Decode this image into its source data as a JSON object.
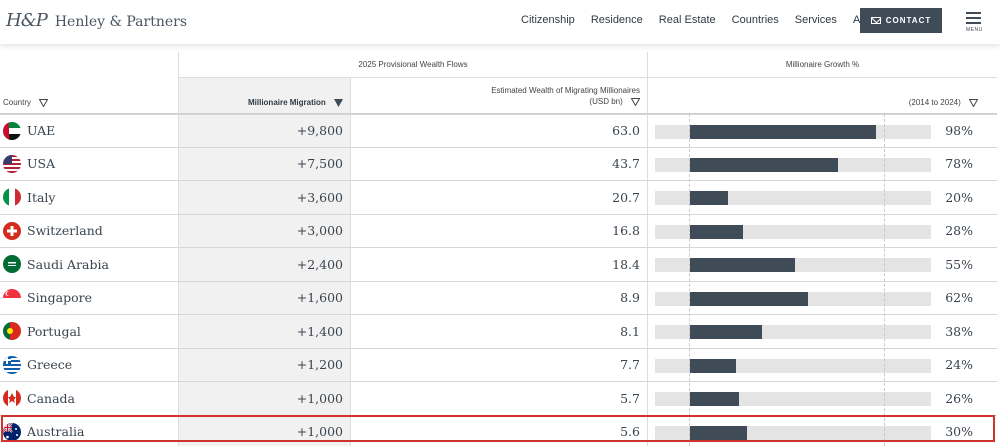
{
  "header": {
    "logo_mark": "H&P",
    "logo_text": "Henley & Partners",
    "nav": [
      "Citizenship",
      "Residence",
      "Real Estate",
      "Countries",
      "Services",
      "About"
    ],
    "contact_label": "CONTACT",
    "menu_label": "MENU"
  },
  "table": {
    "group_headers": {
      "flows": "2025 Provisional Wealth Flows",
      "growth": "Millionaire Growth %"
    },
    "columns": {
      "country": "Country",
      "migration": "Millionaire Migration",
      "wealth_line1": "Estimated Wealth of Migrating Millionaires",
      "wealth_line2": "(USD bn)",
      "growth_period": "(2014 to 2024)"
    },
    "rows": [
      {
        "country": "UAE",
        "migration": "+9,800",
        "wealth": "63.0",
        "growth": 98,
        "growth_label": "98%",
        "flag": "uae"
      },
      {
        "country": "USA",
        "migration": "+7,500",
        "wealth": "43.7",
        "growth": 78,
        "growth_label": "78%",
        "flag": "usa"
      },
      {
        "country": "Italy",
        "migration": "+3,600",
        "wealth": "20.7",
        "growth": 20,
        "growth_label": "20%",
        "flag": "italy"
      },
      {
        "country": "Switzerland",
        "migration": "+3,000",
        "wealth": "16.8",
        "growth": 28,
        "growth_label": "28%",
        "flag": "switzerland"
      },
      {
        "country": "Saudi Arabia",
        "migration": "+2,400",
        "wealth": "18.4",
        "growth": 55,
        "growth_label": "55%",
        "flag": "saudi"
      },
      {
        "country": "Singapore",
        "migration": "+1,600",
        "wealth": "8.9",
        "growth": 62,
        "growth_label": "62%",
        "flag": "singapore"
      },
      {
        "country": "Portugal",
        "migration": "+1,400",
        "wealth": "8.1",
        "growth": 38,
        "growth_label": "38%",
        "flag": "portugal"
      },
      {
        "country": "Greece",
        "migration": "+1,200",
        "wealth": "7.7",
        "growth": 24,
        "growth_label": "24%",
        "flag": "greece"
      },
      {
        "country": "Canada",
        "migration": "+1,000",
        "wealth": "5.7",
        "growth": 26,
        "growth_label": "26%",
        "flag": "canada"
      },
      {
        "country": "Australia",
        "migration": "+1,000",
        "wealth": "5.6",
        "growth": 30,
        "growth_label": "30%",
        "flag": "australia"
      }
    ],
    "highlighted_row": "Australia"
  },
  "colors": {
    "bar": "#3f4c58",
    "track": "#e4e4e4",
    "highlight": "#d0332b"
  }
}
